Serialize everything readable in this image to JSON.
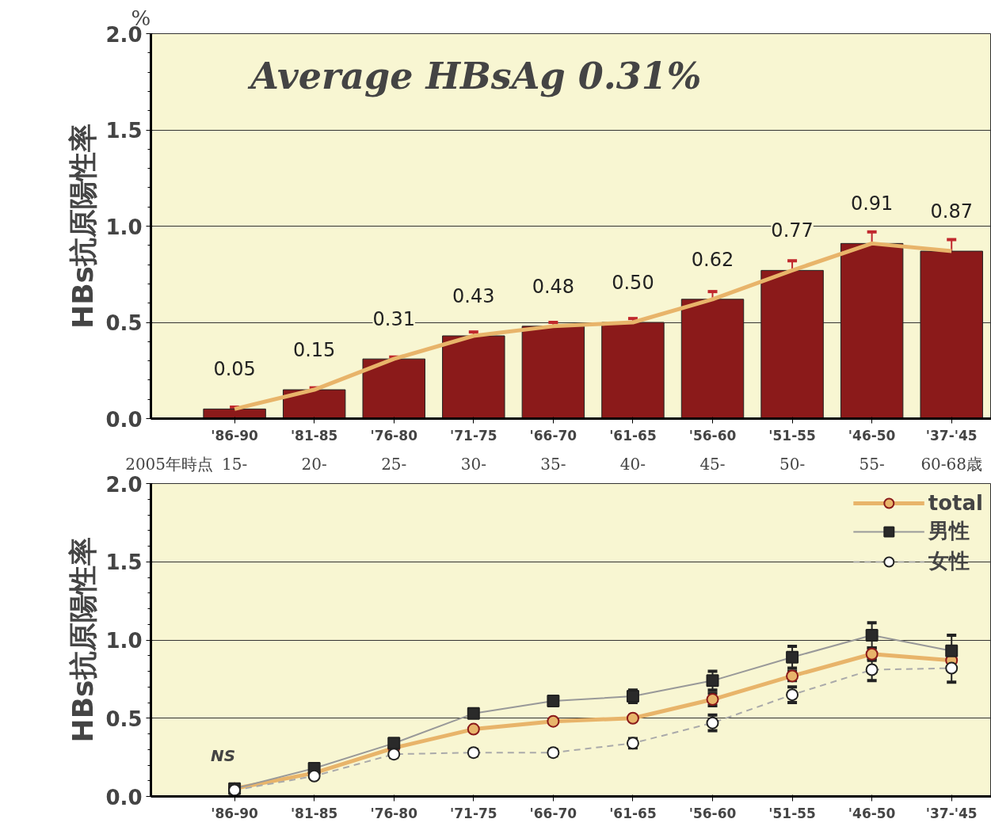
{
  "chart_data": [
    {
      "type": "bar",
      "ylabel": "HBs抗原陽性率",
      "categories": [
        "'86-90",
        "'81-85",
        "'76-80",
        "'71-75",
        "'66-70",
        "'61-65",
        "'56-60",
        "'51-55",
        "'46-50",
        "'37-'45"
      ],
      "series": [
        {
          "type": "bar",
          "color": "#8b1a1a",
          "values": [
            0.05,
            0.15,
            0.31,
            0.43,
            0.48,
            0.5,
            0.62,
            0.77,
            0.91,
            0.87
          ],
          "errors": [
            0.01,
            0.01,
            0.01,
            0.02,
            0.02,
            0.02,
            0.04,
            0.05,
            0.06,
            0.06
          ],
          "value_labels": [
            "0.05",
            "0.15",
            "0.31",
            "0.43",
            "0.48",
            "0.50",
            "0.62",
            "0.77",
            "0.91",
            "0.87"
          ]
        },
        {
          "type": "line",
          "color": "#e8b46a",
          "values": [
            0.05,
            0.15,
            0.31,
            0.43,
            0.48,
            0.5,
            0.62,
            0.77,
            0.91,
            0.87
          ]
        }
      ],
      "ylim": [
        0,
        2.0
      ],
      "yticks": [
        {
          "value": 0,
          "label": "0.0"
        },
        {
          "value": 0.5,
          "label": "0.5"
        },
        {
          "value": 1.0,
          "label": "1.0"
        },
        {
          "value": 1.5,
          "label": "1.5"
        },
        {
          "value": 2.0,
          "label": "2.0"
        }
      ],
      "grid": "y",
      "legend": false,
      "annotations": [
        "%",
        "Average HBsAg 0.31%",
        "2005年時点",
        "15-",
        "20-",
        "25-",
        "30-",
        "35-",
        "40-",
        "45-",
        "50-",
        "55-",
        "60-68歳"
      ]
    },
    {
      "type": "line",
      "ylabel": "HBs抗原陽性率",
      "categories": [
        "'86-90",
        "'81-85",
        "'76-80",
        "'71-75",
        "'66-70",
        "'61-65",
        "'56-60",
        "'51-55",
        "'46-50",
        "'37-'45"
      ],
      "series": [
        {
          "name": "total",
          "color": "#e8b46a",
          "marker": "circle",
          "line_style": "solid",
          "values": [
            0.05,
            0.15,
            0.31,
            0.43,
            0.48,
            0.5,
            0.62,
            0.77,
            0.91,
            0.87
          ],
          "errors": [
            null,
            null,
            null,
            null,
            null,
            null,
            0.04,
            0.03,
            0.04,
            null
          ]
        },
        {
          "name": "男性",
          "color": "#999999",
          "marker": "square",
          "line_style": "solid",
          "values": [
            0.05,
            0.18,
            0.34,
            0.53,
            0.61,
            0.64,
            0.74,
            0.89,
            1.03,
            0.93
          ],
          "errors": [
            null,
            null,
            null,
            null,
            0.03,
            0.04,
            0.06,
            0.07,
            0.08,
            0.1
          ]
        },
        {
          "name": "女性",
          "color": "#aaaaaa",
          "marker": "circle",
          "line_style": "dashed",
          "values": [
            0.04,
            0.13,
            0.27,
            0.28,
            0.28,
            0.34,
            0.47,
            0.65,
            0.81,
            0.82
          ],
          "errors": [
            null,
            null,
            0.02,
            0.02,
            0.02,
            0.03,
            0.05,
            0.05,
            0.07,
            0.09
          ]
        }
      ],
      "ylim": [
        0,
        2.0
      ],
      "yticks": [
        {
          "value": 0,
          "label": "0.0"
        },
        {
          "value": 0.5,
          "label": "0.5"
        },
        {
          "value": 1.0,
          "label": "1.0"
        },
        {
          "value": 1.5,
          "label": "1.5"
        },
        {
          "value": 2.0,
          "label": "2.0"
        }
      ],
      "grid": "y",
      "legend": "top right",
      "annotations": [
        "NS"
      ]
    }
  ]
}
